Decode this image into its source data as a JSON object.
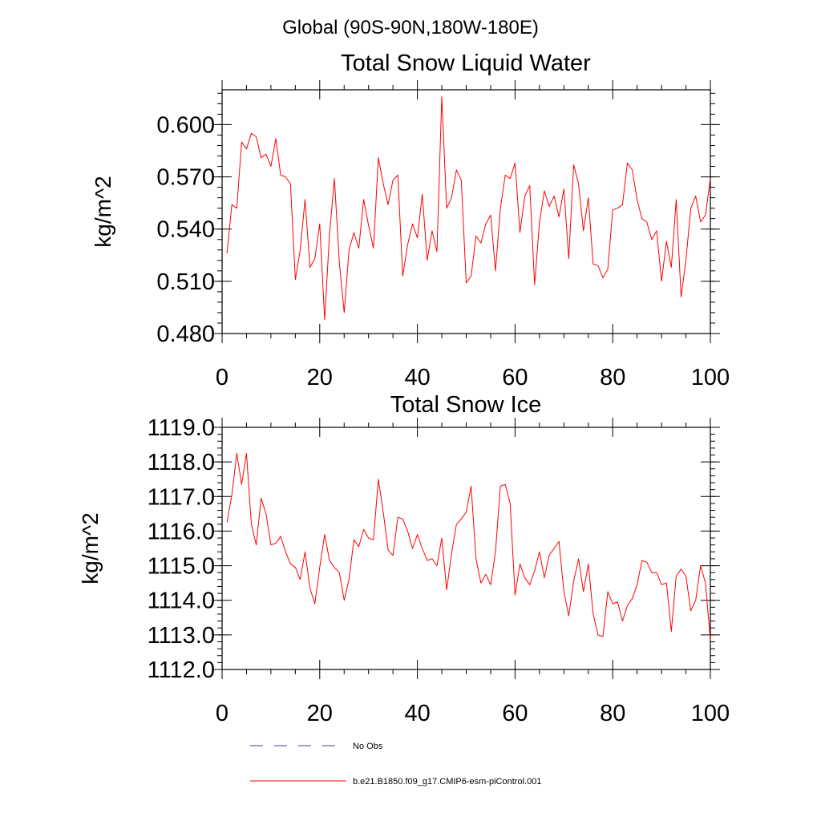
{
  "header": {
    "region": "Global (90S-90N,180W-180E)"
  },
  "legend": {
    "items": [
      {
        "label": "No Obs",
        "color": "#3a3a8c",
        "dash": "dashed"
      },
      {
        "label": "b.e21.B1850.f09_g17.CMIP6-esm-piControl.001",
        "color": "#ff0000",
        "dash": "solid"
      }
    ]
  },
  "chart_data": [
    {
      "type": "line",
      "title": "Total Snow Liquid Water",
      "xlabel": "",
      "ylabel": "kg/m^2",
      "xlim": [
        0,
        100
      ],
      "ylim": [
        0.48,
        0.62
      ],
      "xticks": [
        0,
        20,
        40,
        60,
        80,
        100
      ],
      "xtick_labels": [
        "0",
        "20",
        "40",
        "60",
        "80",
        "100"
      ],
      "yticks": [
        0.48,
        0.51,
        0.54,
        0.57,
        0.6
      ],
      "ytick_labels": [
        "0.480",
        "0.510",
        "0.540",
        "0.570",
        "0.600"
      ],
      "grid": false,
      "series": [
        {
          "name": "b.e21.B1850.f09_g17.CMIP6-esm-piControl.001",
          "color": "#ff0000",
          "x": [
            1,
            2,
            3,
            4,
            5,
            6,
            7,
            8,
            9,
            10,
            11,
            12,
            13,
            14,
            15,
            16,
            17,
            18,
            19,
            20,
            21,
            22,
            23,
            24,
            25,
            26,
            27,
            28,
            29,
            30,
            31,
            32,
            33,
            34,
            35,
            36,
            37,
            38,
            39,
            40,
            41,
            42,
            43,
            44,
            45,
            46,
            47,
            48,
            49,
            50,
            51,
            52,
            53,
            54,
            55,
            56,
            57,
            58,
            59,
            60,
            61,
            62,
            63,
            64,
            65,
            66,
            67,
            68,
            69,
            70,
            71,
            72,
            73,
            74,
            75,
            76,
            77,
            78,
            79,
            80,
            81,
            82,
            83,
            84,
            85,
            86,
            87,
            88,
            89,
            90,
            91,
            92,
            93,
            94,
            95,
            96,
            97,
            98,
            99,
            100
          ],
          "values": [
            0.526,
            0.554,
            0.552,
            0.59,
            0.586,
            0.595,
            0.593,
            0.581,
            0.583,
            0.576,
            0.592,
            0.571,
            0.57,
            0.566,
            0.511,
            0.528,
            0.557,
            0.518,
            0.523,
            0.543,
            0.488,
            0.537,
            0.569,
            0.521,
            0.492,
            0.528,
            0.538,
            0.529,
            0.557,
            0.542,
            0.529,
            0.581,
            0.566,
            0.554,
            0.568,
            0.571,
            0.513,
            0.531,
            0.543,
            0.535,
            0.56,
            0.522,
            0.539,
            0.527,
            0.616,
            0.552,
            0.558,
            0.574,
            0.568,
            0.509,
            0.513,
            0.536,
            0.532,
            0.543,
            0.548,
            0.516,
            0.552,
            0.571,
            0.569,
            0.578,
            0.538,
            0.559,
            0.565,
            0.508,
            0.544,
            0.562,
            0.553,
            0.559,
            0.547,
            0.563,
            0.523,
            0.577,
            0.566,
            0.539,
            0.558,
            0.52,
            0.519,
            0.512,
            0.517,
            0.551,
            0.552,
            0.554,
            0.578,
            0.574,
            0.557,
            0.546,
            0.544,
            0.534,
            0.539,
            0.51,
            0.533,
            0.518,
            0.557,
            0.501,
            0.522,
            0.552,
            0.559,
            0.544,
            0.548,
            0.569
          ]
        }
      ]
    },
    {
      "type": "line",
      "title": "Total Snow Ice",
      "xlabel": "",
      "ylabel": "kg/m^2",
      "xlim": [
        0,
        100
      ],
      "ylim": [
        1112.0,
        1119.0
      ],
      "xticks": [
        0,
        20,
        40,
        60,
        80,
        100
      ],
      "xtick_labels": [
        "0",
        "20",
        "40",
        "60",
        "80",
        "100"
      ],
      "yticks": [
        1112,
        1113,
        1114,
        1115,
        1116,
        1117,
        1118,
        1119
      ],
      "ytick_labels": [
        "1112.0",
        "1113.0",
        "1114.0",
        "1115.0",
        "1116.0",
        "1117.0",
        "1118.0",
        "1119.0"
      ],
      "grid": false,
      "series": [
        {
          "name": "b.e21.B1850.f09_g17.CMIP6-esm-piControl.001",
          "color": "#ff0000",
          "x": [
            1,
            2,
            3,
            4,
            5,
            6,
            7,
            8,
            9,
            10,
            11,
            12,
            13,
            14,
            15,
            16,
            17,
            18,
            19,
            20,
            21,
            22,
            23,
            24,
            25,
            26,
            27,
            28,
            29,
            30,
            31,
            32,
            33,
            34,
            35,
            36,
            37,
            38,
            39,
            40,
            41,
            42,
            43,
            44,
            45,
            46,
            47,
            48,
            49,
            50,
            51,
            52,
            53,
            54,
            55,
            56,
            57,
            58,
            59,
            60,
            61,
            62,
            63,
            64,
            65,
            66,
            67,
            68,
            69,
            70,
            71,
            72,
            73,
            74,
            75,
            76,
            77,
            78,
            79,
            80,
            81,
            82,
            83,
            84,
            85,
            86,
            87,
            88,
            89,
            90,
            91,
            92,
            93,
            94,
            95,
            96,
            97,
            98,
            99,
            100
          ],
          "values": [
            1116.25,
            1117.05,
            1118.25,
            1117.35,
            1118.25,
            1116.2,
            1115.6,
            1116.95,
            1116.5,
            1115.6,
            1115.65,
            1115.85,
            1115.4,
            1115.05,
            1114.95,
            1114.6,
            1115.4,
            1114.35,
            1113.9,
            1114.95,
            1115.9,
            1115.15,
            1114.95,
            1114.8,
            1114.0,
            1114.6,
            1115.75,
            1115.55,
            1116.05,
            1115.8,
            1115.75,
            1117.5,
            1116.55,
            1115.45,
            1115.3,
            1116.4,
            1116.35,
            1116.0,
            1115.5,
            1115.9,
            1115.5,
            1115.15,
            1115.2,
            1115.0,
            1115.8,
            1114.3,
            1115.35,
            1116.2,
            1116.35,
            1116.55,
            1117.3,
            1115.2,
            1114.5,
            1114.75,
            1114.45,
            1115.4,
            1117.3,
            1117.35,
            1116.8,
            1114.15,
            1115.05,
            1114.65,
            1114.45,
            1114.85,
            1115.4,
            1114.65,
            1115.3,
            1115.5,
            1115.7,
            1114.25,
            1113.55,
            1114.55,
            1115.2,
            1114.25,
            1115.05,
            1113.6,
            1113.0,
            1112.95,
            1114.25,
            1113.9,
            1113.95,
            1113.4,
            1113.85,
            1114.05,
            1114.45,
            1115.15,
            1115.1,
            1114.8,
            1114.8,
            1114.45,
            1114.5,
            1113.1,
            1114.7,
            1114.9,
            1114.7,
            1113.7,
            1114.0,
            1115.0,
            1114.5,
            1112.85
          ]
        }
      ]
    }
  ]
}
